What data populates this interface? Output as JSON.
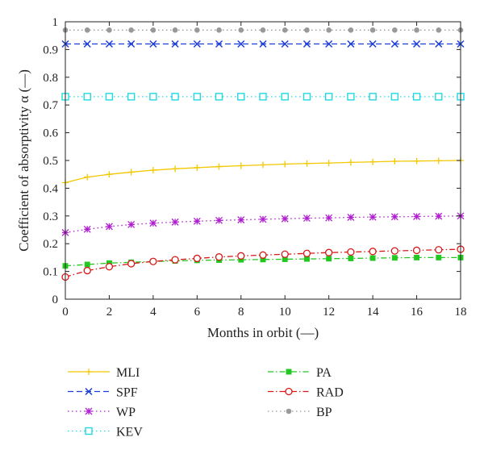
{
  "chart_data": {
    "type": "line",
    "title": "",
    "xlabel": "Months in orbit (—)",
    "ylabel": "Coefficient of absorptivity α (—)",
    "xlim": [
      0,
      18
    ],
    "ylim": [
      0,
      1
    ],
    "x_ticks": [
      "0",
      "2",
      "4",
      "6",
      "8",
      "10",
      "12",
      "14",
      "16",
      "18"
    ],
    "y_ticks": [
      "0",
      "0.1",
      "0.2",
      "0.3",
      "0.4",
      "0.5",
      "0.6",
      "0.7",
      "0.8",
      "0.9",
      "1"
    ],
    "grid": false,
    "legend_position": "bottom",
    "x": [
      0,
      1,
      2,
      3,
      4,
      5,
      6,
      7,
      8,
      9,
      10,
      11,
      12,
      13,
      14,
      15,
      16,
      17,
      18
    ],
    "series": [
      {
        "name": "MLI",
        "color": "#f2c800",
        "dash": "solid",
        "marker": "plus",
        "values": [
          0.42,
          0.44,
          0.45,
          0.458,
          0.465,
          0.47,
          0.474,
          0.478,
          0.481,
          0.484,
          0.487,
          0.489,
          0.491,
          0.493,
          0.495,
          0.497,
          0.498,
          0.499,
          0.5
        ]
      },
      {
        "name": "SPF",
        "color": "#1a3cd8",
        "dash": "dash",
        "marker": "x",
        "values": [
          0.92,
          0.92,
          0.92,
          0.92,
          0.92,
          0.92,
          0.92,
          0.92,
          0.92,
          0.92,
          0.92,
          0.92,
          0.92,
          0.92,
          0.92,
          0.92,
          0.92,
          0.92,
          0.92
        ]
      },
      {
        "name": "WP",
        "color": "#b020d0",
        "dash": "dot",
        "marker": "star",
        "values": [
          0.24,
          0.252,
          0.262,
          0.269,
          0.274,
          0.278,
          0.281,
          0.284,
          0.286,
          0.288,
          0.29,
          0.292,
          0.293,
          0.295,
          0.296,
          0.297,
          0.298,
          0.299,
          0.3
        ]
      },
      {
        "name": "KEV",
        "color": "#22d8e0",
        "dash": "dot",
        "marker": "square-open",
        "values": [
          0.73,
          0.73,
          0.73,
          0.73,
          0.73,
          0.73,
          0.73,
          0.73,
          0.73,
          0.73,
          0.73,
          0.73,
          0.73,
          0.73,
          0.73,
          0.73,
          0.73,
          0.73,
          0.73
        ]
      },
      {
        "name": "PA",
        "color": "#22c820",
        "dash": "dashdot",
        "marker": "square",
        "values": [
          0.12,
          0.125,
          0.13,
          0.133,
          0.136,
          0.138,
          0.14,
          0.141,
          0.142,
          0.143,
          0.144,
          0.145,
          0.146,
          0.147,
          0.148,
          0.149,
          0.15,
          0.15,
          0.15
        ]
      },
      {
        "name": "RAD",
        "color": "#d81818",
        "dash": "dashdot",
        "marker": "circle-open",
        "values": [
          0.08,
          0.103,
          0.117,
          0.128,
          0.136,
          0.142,
          0.147,
          0.152,
          0.156,
          0.159,
          0.162,
          0.165,
          0.168,
          0.17,
          0.172,
          0.174,
          0.176,
          0.178,
          0.18
        ]
      },
      {
        "name": "BP",
        "color": "#999999",
        "dash": "dot",
        "marker": "dot",
        "values": [
          0.97,
          0.97,
          0.97,
          0.97,
          0.97,
          0.97,
          0.97,
          0.97,
          0.97,
          0.97,
          0.97,
          0.97,
          0.97,
          0.97,
          0.97,
          0.97,
          0.97,
          0.97,
          0.97
        ]
      }
    ],
    "legend_columns": [
      [
        "MLI",
        "SPF",
        "WP",
        "KEV"
      ],
      [
        "PA",
        "RAD",
        "BP"
      ]
    ]
  }
}
